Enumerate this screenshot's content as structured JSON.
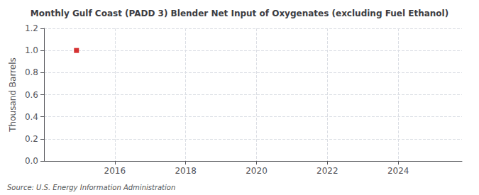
{
  "chart_data": {
    "type": "scatter",
    "title": "Monthly Gulf Coast (PADD 3) Blender Net Input of Oxygenates (excluding Fuel Ethanol)",
    "ylabel": "Thousand Barrels",
    "source": "Source: U.S. Energy Information Administration",
    "x": [
      2014.917
    ],
    "values": [
      1.0
    ],
    "color": "#cc0000",
    "marker": "square",
    "xlim": [
      2014.0,
      2025.8
    ],
    "ylim": [
      0.0,
      1.2
    ],
    "xticks": [
      2016,
      2018,
      2020,
      2022,
      2024
    ],
    "yticks": [
      {
        "value": 0.0,
        "label": "0.0"
      },
      0.2,
      0.4,
      0.6,
      0.8,
      {
        "value": 1.0,
        "label": "1.0"
      },
      1.2
    ],
    "grid": true
  }
}
